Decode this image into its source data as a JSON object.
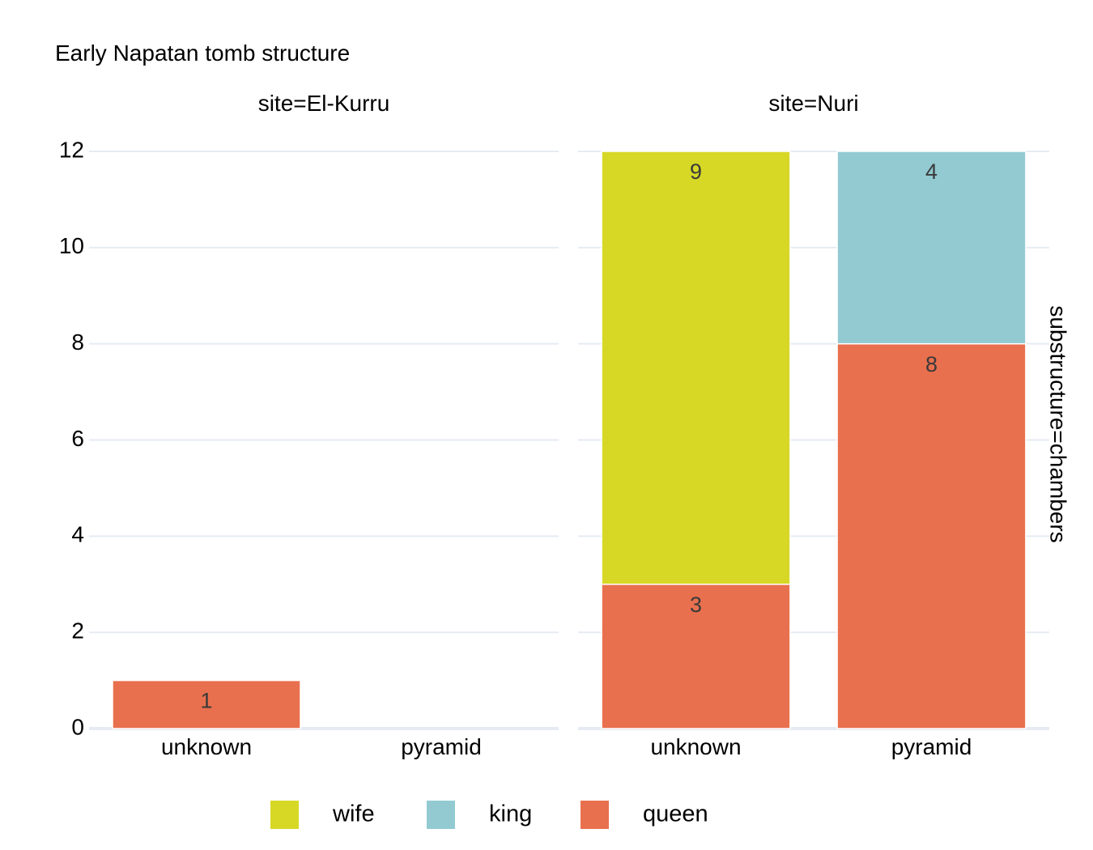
{
  "chart_data": {
    "type": "bar",
    "stacked": true,
    "title": "Early Napatan tomb structure",
    "facet_row_label": "substructure=chambers",
    "categories": [
      "unknown",
      "pyramid"
    ],
    "ylim": [
      0,
      12
    ],
    "yticks": [
      0,
      2,
      4,
      6,
      8,
      10,
      12
    ],
    "grid": true,
    "legend_position": "bottom",
    "legend": [
      {
        "name": "wife",
        "color": "#d7d826"
      },
      {
        "name": "king",
        "color": "#93cad2"
      },
      {
        "name": "queen",
        "color": "#e9704e"
      }
    ],
    "panels": [
      {
        "label": "site=El-Kurru",
        "series": [
          {
            "name": "queen",
            "values": [
              1,
              0
            ]
          },
          {
            "name": "wife",
            "values": [
              0,
              0
            ]
          },
          {
            "name": "king",
            "values": [
              0,
              0
            ]
          }
        ]
      },
      {
        "label": "site=Nuri",
        "series": [
          {
            "name": "queen",
            "values": [
              3,
              8
            ]
          },
          {
            "name": "wife",
            "values": [
              9,
              0
            ]
          },
          {
            "name": "king",
            "values": [
              0,
              4
            ]
          }
        ]
      }
    ]
  }
}
